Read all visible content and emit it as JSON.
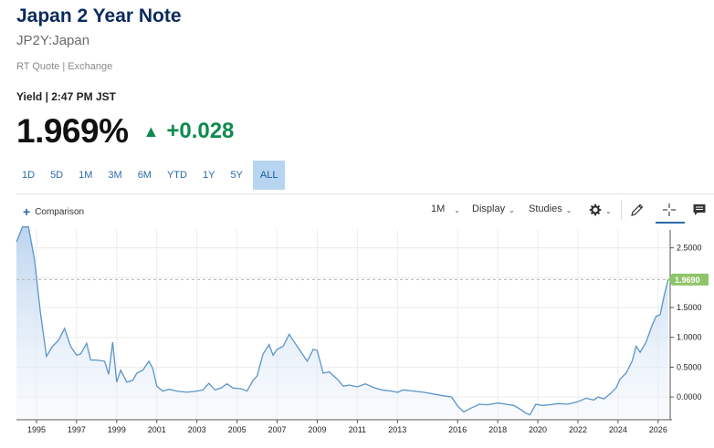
{
  "header": {
    "title": "Japan 2 Year Note",
    "symbol": "JP2Y:Japan",
    "rt_quote": "RT Quote | Exchange",
    "yield_time": "Yield | 2:47 PM JST"
  },
  "quote": {
    "last": "1.969%",
    "change": "+0.028",
    "direction": "up",
    "up_color": "#0e8a4f"
  },
  "ranges": {
    "items": [
      "1D",
      "5D",
      "1M",
      "3M",
      "6M",
      "YTD",
      "1Y",
      "5Y",
      "ALL"
    ],
    "active": "ALL"
  },
  "toolbar": {
    "comparison_label": "Comparison",
    "interval_label": "1M",
    "display_label": "Display",
    "studies_label": "Studies",
    "icons": [
      "gear-icon",
      "pencil-icon",
      "crosshair-icon",
      "comment-icon"
    ]
  },
  "chart_data": {
    "type": "area",
    "x_ticks": [
      "1995",
      "1997",
      "1999",
      "2001",
      "2003",
      "2005",
      "2007",
      "2009",
      "2011",
      "2013",
      "2016",
      "2018",
      "2020",
      "2022",
      "2024",
      "2026"
    ],
    "y_ticks": [
      "2.5000",
      "2.0000",
      "1.5000",
      "1.0000",
      "0.5000",
      "0.0000"
    ],
    "ylim": [
      -0.35,
      2.8
    ],
    "last_label": "1.9690",
    "last_value": 1.969,
    "line_color": "#5b95c9",
    "fill_color": "#dbe8f6",
    "last_badge_color": "#8fc46a",
    "points": [
      [
        1994.0,
        2.6
      ],
      [
        1994.3,
        2.85
      ],
      [
        1994.6,
        2.85
      ],
      [
        1994.9,
        2.3
      ],
      [
        1995.2,
        1.4
      ],
      [
        1995.5,
        0.68
      ],
      [
        1995.8,
        0.85
      ],
      [
        1996.1,
        0.95
      ],
      [
        1996.4,
        1.15
      ],
      [
        1996.7,
        0.85
      ],
      [
        1997.0,
        0.7
      ],
      [
        1997.2,
        0.72
      ],
      [
        1997.5,
        0.9
      ],
      [
        1997.7,
        0.62
      ],
      [
        1998.0,
        0.62
      ],
      [
        1998.4,
        0.6
      ],
      [
        1998.6,
        0.38
      ],
      [
        1998.8,
        0.92
      ],
      [
        1999.0,
        0.25
      ],
      [
        1999.2,
        0.45
      ],
      [
        1999.5,
        0.25
      ],
      [
        1999.8,
        0.28
      ],
      [
        2000.0,
        0.4
      ],
      [
        2000.3,
        0.45
      ],
      [
        2000.6,
        0.6
      ],
      [
        2000.8,
        0.48
      ],
      [
        2001.0,
        0.18
      ],
      [
        2001.3,
        0.1
      ],
      [
        2001.6,
        0.13
      ],
      [
        2002.0,
        0.1
      ],
      [
        2002.5,
        0.08
      ],
      [
        2003.0,
        0.1
      ],
      [
        2003.3,
        0.12
      ],
      [
        2003.6,
        0.23
      ],
      [
        2003.9,
        0.12
      ],
      [
        2004.2,
        0.15
      ],
      [
        2004.5,
        0.22
      ],
      [
        2004.8,
        0.15
      ],
      [
        2005.2,
        0.14
      ],
      [
        2005.5,
        0.1
      ],
      [
        2005.8,
        0.28
      ],
      [
        2006.0,
        0.35
      ],
      [
        2006.3,
        0.72
      ],
      [
        2006.6,
        0.88
      ],
      [
        2006.8,
        0.7
      ],
      [
        2007.0,
        0.8
      ],
      [
        2007.3,
        0.85
      ],
      [
        2007.6,
        1.05
      ],
      [
        2007.9,
        0.9
      ],
      [
        2008.2,
        0.75
      ],
      [
        2008.5,
        0.6
      ],
      [
        2008.8,
        0.8
      ],
      [
        2009.0,
        0.78
      ],
      [
        2009.3,
        0.4
      ],
      [
        2009.6,
        0.42
      ],
      [
        2010.0,
        0.3
      ],
      [
        2010.3,
        0.18
      ],
      [
        2010.6,
        0.2
      ],
      [
        2011.0,
        0.17
      ],
      [
        2011.4,
        0.22
      ],
      [
        2011.8,
        0.16
      ],
      [
        2012.2,
        0.12
      ],
      [
        2012.7,
        0.1
      ],
      [
        2013.0,
        0.08
      ],
      [
        2013.3,
        0.12
      ],
      [
        2013.8,
        0.1
      ],
      [
        2014.3,
        0.08
      ],
      [
        2014.8,
        0.05
      ],
      [
        2015.3,
        0.02
      ],
      [
        2015.7,
        0.0
      ],
      [
        2016.0,
        -0.15
      ],
      [
        2016.3,
        -0.25
      ],
      [
        2016.7,
        -0.18
      ],
      [
        2017.1,
        -0.12
      ],
      [
        2017.5,
        -0.13
      ],
      [
        2018.0,
        -0.1
      ],
      [
        2018.4,
        -0.12
      ],
      [
        2018.8,
        -0.14
      ],
      [
        2019.1,
        -0.2
      ],
      [
        2019.4,
        -0.27
      ],
      [
        2019.6,
        -0.3
      ],
      [
        2019.9,
        -0.12
      ],
      [
        2020.2,
        -0.14
      ],
      [
        2020.6,
        -0.13
      ],
      [
        2021.0,
        -0.11
      ],
      [
        2021.5,
        -0.12
      ],
      [
        2022.0,
        -0.08
      ],
      [
        2022.4,
        -0.02
      ],
      [
        2022.8,
        -0.05
      ],
      [
        2023.0,
        0.0
      ],
      [
        2023.3,
        -0.03
      ],
      [
        2023.6,
        0.05
      ],
      [
        2023.9,
        0.15
      ],
      [
        2024.1,
        0.3
      ],
      [
        2024.4,
        0.4
      ],
      [
        2024.7,
        0.6
      ],
      [
        2024.9,
        0.85
      ],
      [
        2025.1,
        0.75
      ],
      [
        2025.4,
        0.92
      ],
      [
        2025.7,
        1.2
      ],
      [
        2025.9,
        1.35
      ],
      [
        2026.1,
        1.38
      ],
      [
        2026.3,
        1.7
      ],
      [
        2026.5,
        1.969
      ]
    ]
  }
}
